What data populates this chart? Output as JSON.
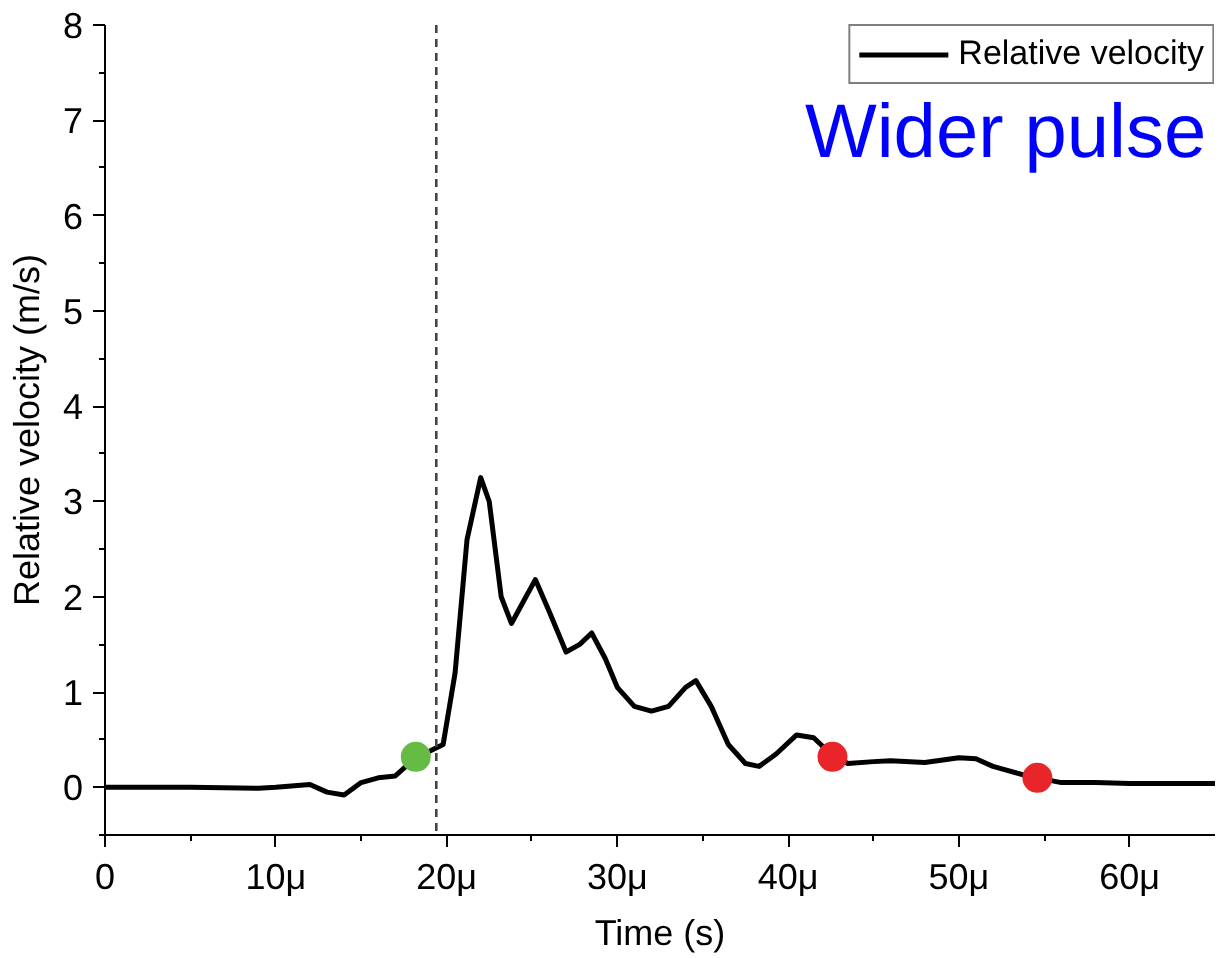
{
  "chart_data": {
    "type": "line",
    "xlabel": "Time (s)",
    "ylabel": "Relative velocity (m/s)",
    "annotations": [
      "Wider pulse"
    ],
    "xlim": [
      0,
      65
    ],
    "ylim": [
      -0.5,
      8
    ],
    "xticks": [
      0,
      {
        "value": 10,
        "label": "10μ"
      },
      {
        "value": 20,
        "label": "20μ"
      },
      {
        "value": 30,
        "label": "30μ"
      },
      {
        "value": 40,
        "label": "40μ"
      },
      {
        "value": 50,
        "label": "50μ"
      },
      {
        "value": 60,
        "label": "60μ"
      }
    ],
    "yticks": [
      0,
      1,
      2,
      3,
      4,
      5,
      6,
      7,
      8
    ],
    "grid": false,
    "legend": "top right",
    "ref_lines": [
      {
        "axis": "x",
        "value": 19.4,
        "line_style": "dashed",
        "color": "#444444"
      }
    ],
    "series": [
      {
        "name": "Relative velocity",
        "color": "#000000",
        "line_style": "solid",
        "x": [
          0,
          5,
          9,
          10,
          12,
          13,
          14,
          15,
          16,
          17,
          18,
          19,
          19.8,
          20.5,
          21.2,
          22,
          22.5,
          23.2,
          23.8,
          24.5,
          25.2,
          26,
          27,
          27.8,
          28.5,
          29.3,
          30,
          31,
          32,
          33,
          34,
          34.6,
          35.5,
          36.5,
          37.5,
          38.3,
          39.3,
          40.5,
          41.5,
          42.5,
          43.5,
          45,
          46,
          48,
          50,
          51,
          52,
          54,
          56,
          58,
          60,
          62,
          65
        ],
        "values": [
          0,
          0,
          -0.01,
          0,
          0.03,
          -0.05,
          -0.08,
          0.05,
          0.1,
          0.12,
          0.28,
          0.38,
          0.45,
          1.2,
          2.6,
          3.25,
          3.0,
          2.0,
          1.72,
          1.95,
          2.18,
          1.85,
          1.42,
          1.5,
          1.62,
          1.35,
          1.05,
          0.85,
          0.8,
          0.85,
          1.05,
          1.12,
          0.85,
          0.45,
          0.25,
          0.22,
          0.35,
          0.55,
          0.52,
          0.35,
          0.25,
          0.27,
          0.28,
          0.26,
          0.31,
          0.3,
          0.22,
          0.12,
          0.05,
          0.05,
          0.04,
          0.04,
          0.04
        ]
      },
      {
        "type": "scatter",
        "marker": "circle",
        "x": [
          18.2,
          42.6,
          54.6
        ],
        "values": [
          0.32,
          0.32,
          0.1
        ],
        "colors": [
          "#66bb44",
          "#e8262a",
          "#e8262a"
        ]
      }
    ]
  }
}
